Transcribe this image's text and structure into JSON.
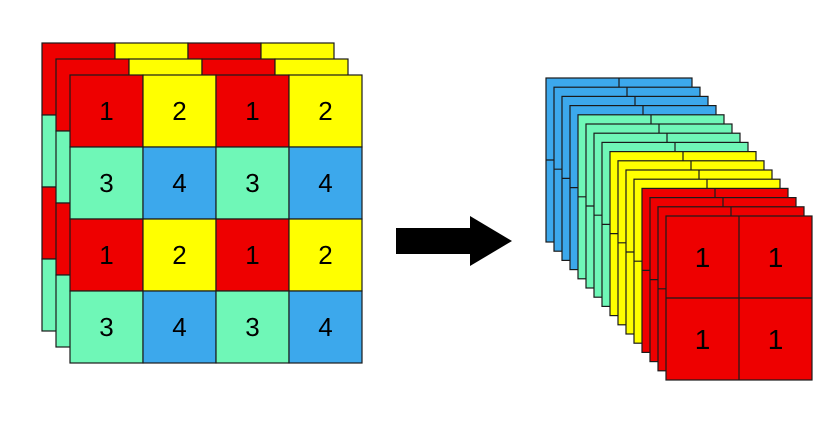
{
  "colors": {
    "red": "#ee0000",
    "yellow": "#ffff00",
    "green": "#6ff7b7",
    "blue": "#3ca8ec",
    "arrow": "#000000",
    "border": "#1a1a1a"
  },
  "input_grid": {
    "rows": [
      [
        {
          "label": "1",
          "color": "red"
        },
        {
          "label": "2",
          "color": "yellow"
        },
        {
          "label": "1",
          "color": "red"
        },
        {
          "label": "2",
          "color": "yellow"
        }
      ],
      [
        {
          "label": "3",
          "color": "green"
        },
        {
          "label": "4",
          "color": "blue"
        },
        {
          "label": "3",
          "color": "green"
        },
        {
          "label": "4",
          "color": "blue"
        }
      ],
      [
        {
          "label": "1",
          "color": "red"
        },
        {
          "label": "2",
          "color": "yellow"
        },
        {
          "label": "1",
          "color": "red"
        },
        {
          "label": "2",
          "color": "yellow"
        }
      ],
      [
        {
          "label": "3",
          "color": "green"
        },
        {
          "label": "4",
          "color": "blue"
        },
        {
          "label": "3",
          "color": "green"
        },
        {
          "label": "4",
          "color": "blue"
        }
      ]
    ],
    "channel_layers": 3
  },
  "arrow_icon": "right-arrow-icon",
  "output_stack": {
    "groups": [
      {
        "color": "blue",
        "layers": 4
      },
      {
        "color": "green",
        "layers": 4
      },
      {
        "color": "yellow",
        "layers": 4
      },
      {
        "color": "red",
        "layers": 4
      }
    ],
    "front_cells": [
      "1",
      "1",
      "1",
      "1"
    ]
  }
}
